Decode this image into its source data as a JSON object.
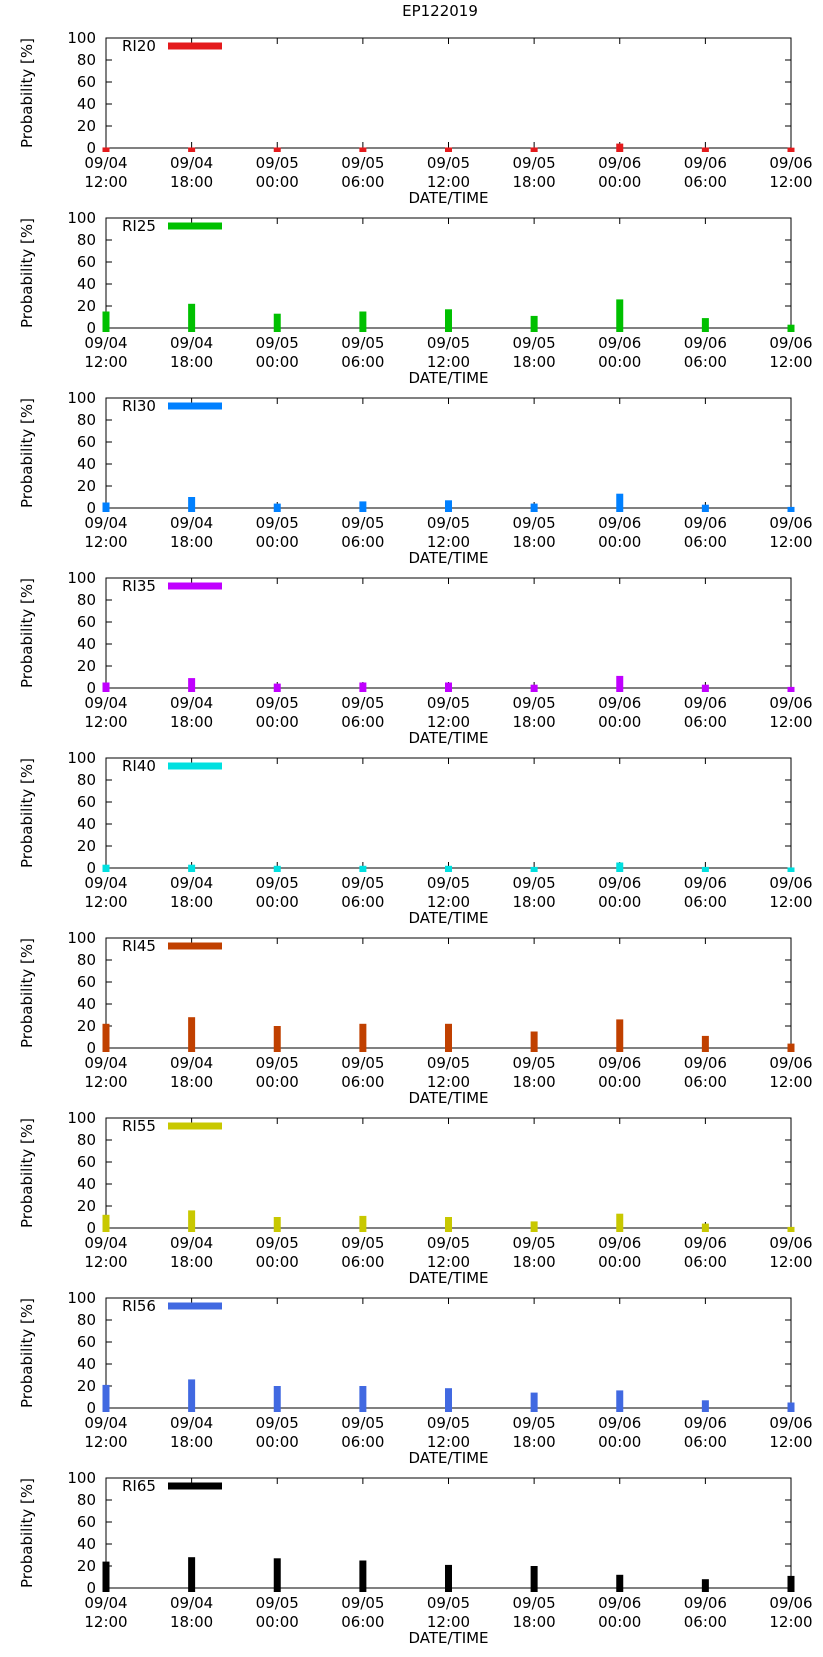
{
  "page_title": "EP122019",
  "chart_data": [
    {
      "type": "bar",
      "series_name": "RI20",
      "color": "#e41a1c",
      "title": "",
      "xlabel": "DATE/TIME",
      "ylabel": "Probability [%]",
      "ylim": [
        0,
        100
      ],
      "yticks": [
        0,
        20,
        40,
        60,
        80,
        100
      ],
      "categories": [
        "09/04 12:00",
        "09/04 18:00",
        "09/05 00:00",
        "09/05 06:00",
        "09/05 12:00",
        "09/05 18:00",
        "09/06 00:00",
        "09/06 06:00",
        "09/06 12:00"
      ],
      "values": [
        0.5,
        0.5,
        0.5,
        0.5,
        0.5,
        0.5,
        4,
        0.5,
        0.3
      ]
    },
    {
      "type": "bar",
      "series_name": "RI25",
      "color": "#00c000",
      "title": "",
      "xlabel": "DATE/TIME",
      "ylabel": "Probability [%]",
      "ylim": [
        0,
        100
      ],
      "yticks": [
        0,
        20,
        40,
        60,
        80,
        100
      ],
      "categories": [
        "09/04 12:00",
        "09/04 18:00",
        "09/05 00:00",
        "09/05 06:00",
        "09/05 12:00",
        "09/05 18:00",
        "09/06 00:00",
        "09/06 06:00",
        "09/06 12:00"
      ],
      "values": [
        15,
        22,
        13,
        15,
        17,
        11,
        26,
        9,
        3
      ]
    },
    {
      "type": "bar",
      "series_name": "RI30",
      "color": "#0080ff",
      "title": "",
      "xlabel": "DATE/TIME",
      "ylabel": "Probability [%]",
      "ylim": [
        0,
        100
      ],
      "yticks": [
        0,
        20,
        40,
        60,
        80,
        100
      ],
      "categories": [
        "09/04 12:00",
        "09/04 18:00",
        "09/05 00:00",
        "09/05 06:00",
        "09/05 12:00",
        "09/05 18:00",
        "09/06 00:00",
        "09/06 06:00",
        "09/06 12:00"
      ],
      "values": [
        5,
        10,
        4,
        6,
        7,
        4,
        13,
        3,
        1
      ]
    },
    {
      "type": "bar",
      "series_name": "RI35",
      "color": "#c000ff",
      "title": "",
      "xlabel": "DATE/TIME",
      "ylabel": "Probability [%]",
      "ylim": [
        0,
        100
      ],
      "yticks": [
        0,
        20,
        40,
        60,
        80,
        100
      ],
      "categories": [
        "09/04 12:00",
        "09/04 18:00",
        "09/05 00:00",
        "09/05 06:00",
        "09/05 12:00",
        "09/05 18:00",
        "09/06 00:00",
        "09/06 06:00",
        "09/06 12:00"
      ],
      "values": [
        5,
        9,
        4,
        5,
        5,
        3,
        11,
        3,
        1
      ]
    },
    {
      "type": "bar",
      "series_name": "RI40",
      "color": "#00e0e0",
      "title": "",
      "xlabel": "DATE/TIME",
      "ylabel": "Probability [%]",
      "ylim": [
        0,
        100
      ],
      "yticks": [
        0,
        20,
        40,
        60,
        80,
        100
      ],
      "categories": [
        "09/04 12:00",
        "09/04 18:00",
        "09/05 00:00",
        "09/05 06:00",
        "09/05 12:00",
        "09/05 18:00",
        "09/06 00:00",
        "09/06 06:00",
        "09/06 12:00"
      ],
      "values": [
        3,
        3,
        2,
        2,
        2,
        1,
        5,
        1,
        0.5
      ]
    },
    {
      "type": "bar",
      "series_name": "RI45",
      "color": "#c04000",
      "title": "",
      "xlabel": "DATE/TIME",
      "ylabel": "Probability [%]",
      "ylim": [
        0,
        100
      ],
      "yticks": [
        0,
        20,
        40,
        60,
        80,
        100
      ],
      "categories": [
        "09/04 12:00",
        "09/04 18:00",
        "09/05 00:00",
        "09/05 06:00",
        "09/05 12:00",
        "09/05 18:00",
        "09/06 00:00",
        "09/06 06:00",
        "09/06 12:00"
      ],
      "values": [
        22,
        28,
        20,
        22,
        22,
        15,
        26,
        11,
        4
      ]
    },
    {
      "type": "bar",
      "series_name": "RI55",
      "color": "#c8c800",
      "title": "",
      "xlabel": "DATE/TIME",
      "ylabel": "Probability [%]",
      "ylim": [
        0,
        100
      ],
      "yticks": [
        0,
        20,
        40,
        60,
        80,
        100
      ],
      "categories": [
        "09/04 12:00",
        "09/04 18:00",
        "09/05 00:00",
        "09/05 06:00",
        "09/05 12:00",
        "09/05 18:00",
        "09/06 00:00",
        "09/06 06:00",
        "09/06 12:00"
      ],
      "values": [
        12,
        16,
        10,
        11,
        10,
        6,
        13,
        4,
        1
      ]
    },
    {
      "type": "bar",
      "series_name": "RI56",
      "color": "#4169e1",
      "title": "",
      "xlabel": "DATE/TIME",
      "ylabel": "Probability [%]",
      "ylim": [
        0,
        100
      ],
      "yticks": [
        0,
        20,
        40,
        60,
        80,
        100
      ],
      "categories": [
        "09/04 12:00",
        "09/04 18:00",
        "09/05 00:00",
        "09/05 06:00",
        "09/05 12:00",
        "09/05 18:00",
        "09/06 00:00",
        "09/06 06:00",
        "09/06 12:00"
      ],
      "values": [
        21,
        26,
        20,
        20,
        18,
        14,
        16,
        7,
        5
      ]
    },
    {
      "type": "bar",
      "series_name": "RI65",
      "color": "#000000",
      "title": "",
      "xlabel": "DATE/TIME",
      "ylabel": "Probability [%]",
      "ylim": [
        0,
        100
      ],
      "yticks": [
        0,
        20,
        40,
        60,
        80,
        100
      ],
      "categories": [
        "09/04 12:00",
        "09/04 18:00",
        "09/05 00:00",
        "09/05 06:00",
        "09/05 12:00",
        "09/05 18:00",
        "09/06 00:00",
        "09/06 06:00",
        "09/06 12:00"
      ],
      "values": [
        24,
        28,
        27,
        25,
        21,
        20,
        12,
        8,
        11
      ]
    }
  ]
}
